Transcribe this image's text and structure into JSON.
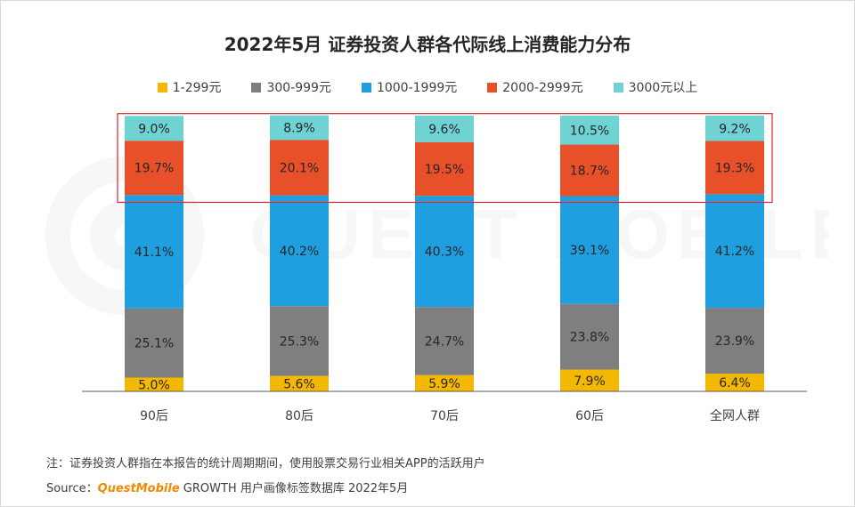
{
  "colors": {
    "s1": "#f5b800",
    "s2": "#7f7f7f",
    "s3": "#1f9fe0",
    "s4": "#e8502a",
    "s5": "#6fd3d3",
    "highlight": "#e0262b",
    "axis": "#595959"
  },
  "icons": {
    "watermark": "questmobile-logo-watermark"
  },
  "watermark_text": "QUEST MOBILE",
  "note": "注：证券投资人群指在本报告的统计周期期间，使用股票交易行业相关APP的活跃用户",
  "source": {
    "prefix": "Source：",
    "brand": "QuestMobile",
    "suffix": " GROWTH 用户画像标签数据库 2022年5月"
  },
  "chart_data": {
    "type": "bar",
    "stacked": true,
    "percent": true,
    "title": "2022年5月 证券投资人群各代际线上消费能力分布",
    "xlabel": "",
    "ylabel": "",
    "ylim": [
      0,
      100
    ],
    "legend_position": "top-center",
    "categories": [
      "90后",
      "80后",
      "70后",
      "60后",
      "全网人群"
    ],
    "series": [
      {
        "name": "1-299元",
        "values": [
          5.0,
          5.6,
          5.9,
          7.9,
          6.4
        ],
        "labels": [
          "5.0%",
          "5.6%",
          "5.9%",
          "7.9%",
          "6.4%"
        ]
      },
      {
        "name": "300-999元",
        "values": [
          25.1,
          25.3,
          24.7,
          23.8,
          23.9
        ],
        "labels": [
          "25.1%",
          "25.3%",
          "24.7%",
          "23.8%",
          "23.9%"
        ]
      },
      {
        "name": "1000-1999元",
        "values": [
          41.1,
          40.2,
          40.3,
          39.1,
          41.2
        ],
        "labels": [
          "41.1%",
          "40.2%",
          "40.3%",
          "39.1%",
          "41.2%"
        ]
      },
      {
        "name": "2000-2999元",
        "values": [
          19.7,
          20.1,
          19.5,
          18.7,
          19.3
        ],
        "labels": [
          "19.7%",
          "20.1%",
          "19.5%",
          "18.7%",
          "19.3%"
        ]
      },
      {
        "name": "3000元以上",
        "values": [
          9.0,
          8.9,
          9.6,
          10.5,
          9.2
        ],
        "labels": [
          "9.0%",
          "8.9%",
          "9.6%",
          "10.5%",
          "9.2%"
        ]
      }
    ],
    "annotations": [
      {
        "type": "highlight-box",
        "covers_series": [
          "2000-2999元",
          "3000元以上"
        ]
      }
    ]
  }
}
